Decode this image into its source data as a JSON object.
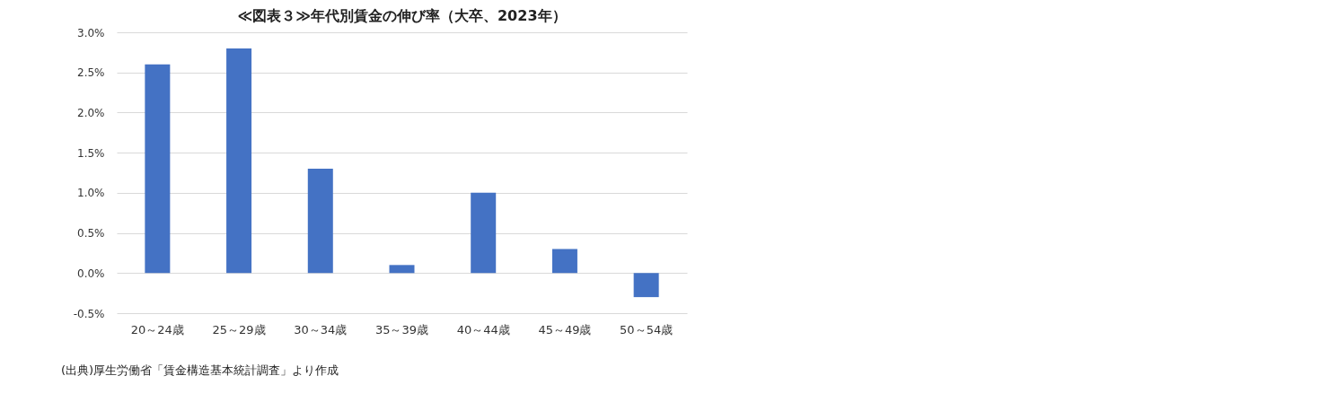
{
  "chart_data": {
    "type": "bar",
    "title": "≪図表３≫年代別賃金の伸び率（大卒、2023年）",
    "categories": [
      "20～24歳",
      "25～29歳",
      "30～34歳",
      "35～39歳",
      "40～44歳",
      "45～49歳",
      "50～54歳"
    ],
    "values": [
      2.6,
      2.8,
      1.3,
      0.1,
      1.0,
      0.3,
      -0.3
    ],
    "color": "#4472c4",
    "ylim": [
      -0.5,
      3.0
    ],
    "yticks": [
      {
        "value": -0.5,
        "label": "-0.5%"
      },
      {
        "value": 0,
        "label": "0.0%"
      },
      {
        "value": 0.5,
        "label": "0.5%"
      },
      {
        "value": 1.0,
        "label": "1.0%"
      },
      {
        "value": 1.5,
        "label": "1.5%"
      },
      {
        "value": 2.0,
        "label": "2.0%"
      },
      {
        "value": 2.5,
        "label": "2.5%"
      },
      {
        "value": 3.0,
        "label": "3.0%"
      }
    ],
    "grid": "y",
    "annotations": [
      "(出典)厚生労働省「賃金構造基本統計調査」より作成"
    ]
  }
}
